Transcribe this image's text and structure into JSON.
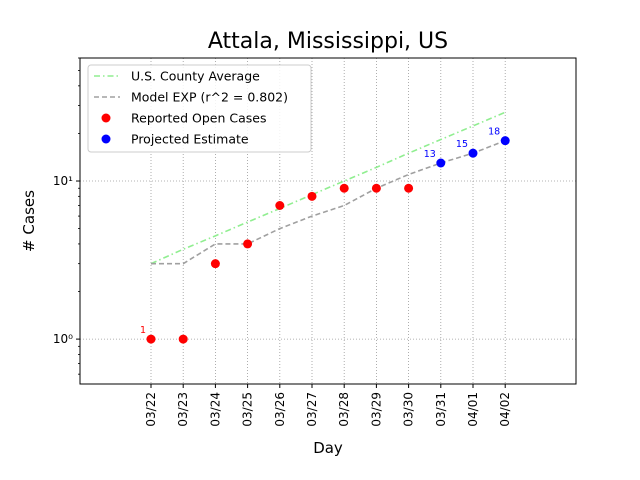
{
  "chart_data": {
    "type": "line",
    "title": "Attala, Mississippi, US",
    "xlabel": "Day",
    "ylabel": "# Cases",
    "yscale": "log",
    "ylim": [
      0.52,
      60
    ],
    "x_categories": [
      "03/22",
      "03/23",
      "03/24",
      "03/25",
      "03/26",
      "03/27",
      "03/28",
      "03/29",
      "03/30",
      "03/31",
      "04/01",
      "04/02"
    ],
    "y_ticks": [
      {
        "value": 1,
        "label": "10⁰"
      },
      {
        "value": 10,
        "label": "10¹"
      }
    ],
    "grid": true,
    "legend_position": "top-left",
    "series": [
      {
        "name": "U.S. County Average",
        "style": "dashdot",
        "color": "#90ee90",
        "x": [
          "03/22",
          "03/23",
          "03/24",
          "03/25",
          "03/26",
          "03/27",
          "03/28",
          "03/29",
          "03/30",
          "03/31",
          "04/01",
          "04/02"
        ],
        "values": [
          3.0,
          3.7,
          4.5,
          5.5,
          6.7,
          8.2,
          10.0,
          12.2,
          15.0,
          18.3,
          22.3,
          27.2
        ]
      },
      {
        "name": "Model EXP (r^2 = 0.802)",
        "style": "dashed",
        "color": "#a0a0a0",
        "x": [
          "03/22",
          "03/23",
          "03/24",
          "03/25",
          "03/26",
          "03/27",
          "03/28",
          "03/29",
          "03/30",
          "03/31",
          "04/01",
          "04/02"
        ],
        "values": [
          3,
          3,
          4,
          4,
          5,
          6,
          7,
          9,
          11,
          13,
          15,
          18
        ]
      },
      {
        "name": "Reported Open Cases",
        "style": "markers",
        "color": "#ff0000",
        "x": [
          "03/22",
          "03/23",
          "03/24",
          "03/25",
          "03/26",
          "03/27",
          "03/28",
          "03/29",
          "03/30"
        ],
        "values": [
          1,
          1,
          3,
          4,
          7,
          8,
          9,
          9,
          9
        ]
      },
      {
        "name": "Projected Estimate",
        "style": "markers",
        "color": "#0000ff",
        "x": [
          "03/31",
          "04/01",
          "04/02"
        ],
        "values": [
          13,
          15,
          18
        ]
      }
    ],
    "annotations": [
      {
        "text": "1",
        "x": "03/22",
        "y": 1,
        "color": "#ff0000"
      },
      {
        "text": "13",
        "x": "03/31",
        "y": 13,
        "color": "#0000ff"
      },
      {
        "text": "15",
        "x": "04/01",
        "y": 15,
        "color": "#0000ff"
      },
      {
        "text": "18",
        "x": "04/02",
        "y": 18,
        "color": "#0000ff"
      }
    ]
  }
}
